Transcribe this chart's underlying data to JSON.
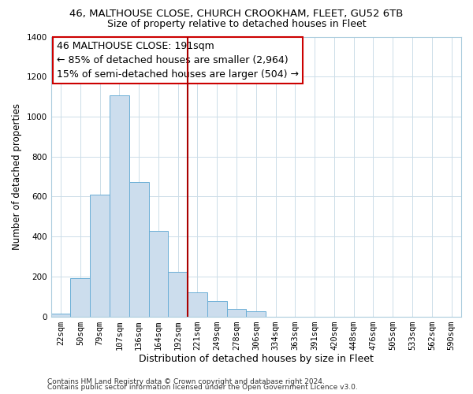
{
  "title1": "46, MALTHOUSE CLOSE, CHURCH CROOKHAM, FLEET, GU52 6TB",
  "title2": "Size of property relative to detached houses in Fleet",
  "xlabel": "Distribution of detached houses by size in Fleet",
  "ylabel": "Number of detached properties",
  "bin_labels": [
    "22sqm",
    "50sqm",
    "79sqm",
    "107sqm",
    "136sqm",
    "164sqm",
    "192sqm",
    "221sqm",
    "249sqm",
    "278sqm",
    "306sqm",
    "334sqm",
    "363sqm",
    "391sqm",
    "420sqm",
    "448sqm",
    "476sqm",
    "505sqm",
    "533sqm",
    "562sqm",
    "590sqm"
  ],
  "bar_heights": [
    15,
    192,
    610,
    1105,
    672,
    428,
    222,
    122,
    76,
    38,
    27,
    0,
    0,
    0,
    0,
    0,
    0,
    0,
    0,
    0,
    0
  ],
  "bar_color": "#ccdded",
  "bar_edge_color": "#6aaed6",
  "bar_width": 1.0,
  "vline_x": 6.5,
  "vline_color": "#aa0000",
  "annotation_line1": "46 MALTHOUSE CLOSE: 191sqm",
  "annotation_line2": "← 85% of detached houses are smaller (2,964)",
  "annotation_line3": "15% of semi-detached houses are larger (504) →",
  "box_edge_color": "#cc0000",
  "ylim": [
    0,
    1400
  ],
  "yticks": [
    0,
    200,
    400,
    600,
    800,
    1000,
    1200,
    1400
  ],
  "grid_color": "#ccdde8",
  "footer1": "Contains HM Land Registry data © Crown copyright and database right 2024.",
  "footer2": "Contains public sector information licensed under the Open Government Licence v3.0.",
  "title1_fontsize": 9.5,
  "title2_fontsize": 9,
  "xlabel_fontsize": 9,
  "ylabel_fontsize": 8.5,
  "tick_fontsize": 7.5,
  "annotation_fontsize": 9,
  "footer_fontsize": 6.5
}
